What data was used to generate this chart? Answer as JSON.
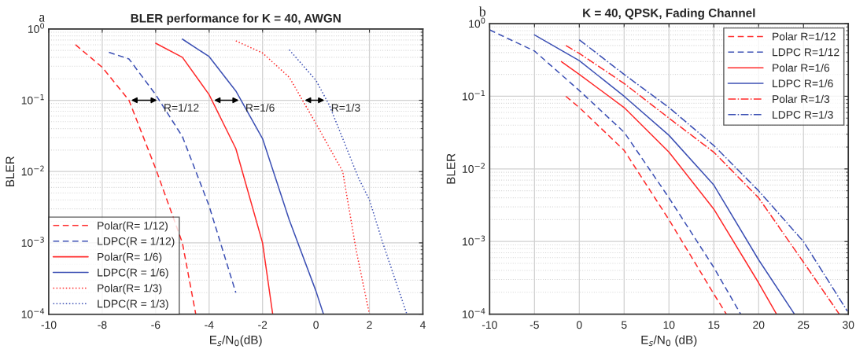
{
  "chart_data": [
    {
      "type": "line",
      "title": "BLER performance for K = 40, AWGN",
      "xlabel": "E$_{s}$/N$_{0}$(dB)",
      "ylabel": "BLER",
      "log": "y",
      "grid": true,
      "legend": "bottom left",
      "xlim": [
        -10,
        4
      ],
      "xticks": [
        -10,
        -8,
        -6,
        -4,
        -2,
        0,
        2,
        4
      ],
      "ylim": [
        0.0001,
        1
      ],
      "yticks": [
        {
          "value": 0.0001,
          "label": "10$^{−4}$"
        },
        {
          "value": 0.001,
          "label": "10$^{−3}$"
        },
        {
          "value": 0.01,
          "label": "10$^{−2}$"
        },
        {
          "value": 0.1,
          "label": "10$^{−1}$"
        },
        {
          "value": 1,
          "label": "10$^{0}$"
        }
      ],
      "annotations": [
        "a",
        {
          "text": "R=1/12",
          "x": -7,
          "y": 0.1
        },
        {
          "text": "R=1/6",
          "x": -3.896,
          "y": 0.1
        },
        {
          "text": "R=1/3",
          "x": -0.505,
          "y": 0.1
        }
      ],
      "series": [
        {
          "name": "Polar(R= 1/12)",
          "color": "#ff2a2a",
          "line_style": "dashed",
          "x": [
            -9,
            -8,
            -7,
            -6,
            -5,
            -4.5
          ],
          "values": [
            0.6,
            0.29,
            0.1,
            0.011,
            0.001,
            0.0001
          ]
        },
        {
          "name": "LDPC(R = 1/12)",
          "color": "#3c50b4",
          "line_style": "dashed",
          "x": [
            -7.75,
            -7,
            -6,
            -5,
            -4,
            -3
          ],
          "values": [
            0.47,
            0.38,
            0.12,
            0.031,
            0.0033,
            0.0002
          ]
        },
        {
          "name": "Polar(R= 1/6)",
          "color": "#ff2a2a",
          "line_style": "solid",
          "x": [
            -6,
            -5,
            -4,
            -3,
            -2,
            -1.62
          ],
          "values": [
            0.63,
            0.4,
            0.12,
            0.021,
            0.001,
            0.0001
          ]
        },
        {
          "name": "LDPC(R = 1/6)",
          "color": "#3c50b4",
          "line_style": "solid",
          "x": [
            -5,
            -4,
            -3,
            -2,
            -1,
            0,
            0.28
          ],
          "values": [
            0.72,
            0.41,
            0.135,
            0.029,
            0.0021,
            0.00021,
            0.0001
          ]
        },
        {
          "name": "Polar(R= 1/3)",
          "color": "#ff2a2a",
          "line_style": "dotted",
          "x": [
            -3,
            -2,
            -1,
            0,
            1,
            1.5,
            2
          ],
          "values": [
            0.68,
            0.46,
            0.21,
            0.047,
            0.01,
            0.0008,
            0.0001
          ]
        },
        {
          "name": "LDPC(R = 1/3)",
          "color": "#3c50b4",
          "line_style": "dotted",
          "x": [
            -1,
            0,
            0.5,
            1.6,
            2,
            2.5,
            3.4
          ],
          "values": [
            0.51,
            0.19,
            0.085,
            0.008,
            0.004,
            0.001,
            0.0001
          ]
        }
      ]
    },
    {
      "type": "line",
      "title": "K = 40, QPSK, Fading Channel",
      "xlabel": "E$_{s}$/N$_{0}$ (dB)",
      "ylabel": "BLER",
      "log": "y",
      "grid": true,
      "legend": "top right",
      "xlim": [
        -10,
        30
      ],
      "xticks": [
        -10,
        -5,
        0,
        5,
        10,
        15,
        20,
        25,
        30
      ],
      "ylim": [
        0.0001,
        1
      ],
      "yticks": [
        {
          "value": 0.0001,
          "label": "10$^{−4}$"
        },
        {
          "value": 0.001,
          "label": "10$^{−3}$"
        },
        {
          "value": 0.01,
          "label": "10$^{−2}$"
        },
        {
          "value": 0.1,
          "label": "10$^{−1}$"
        },
        {
          "value": 1,
          "label": "10$^{0}$"
        }
      ],
      "annotations": [
        "b"
      ],
      "series": [
        {
          "name": "Polar R=1/12",
          "color": "#ff2a2a",
          "line_style": "dashed",
          "x": [
            -1.5,
            0,
            5,
            10,
            15,
            16.4
          ],
          "values": [
            0.1,
            0.07,
            0.018,
            0.002,
            0.00019,
            0.0001
          ]
        },
        {
          "name": "LDPC R=1/12",
          "color": "#3c50b4",
          "line_style": "dashed",
          "x": [
            -10,
            -5,
            0,
            5,
            10,
            15,
            18
          ],
          "values": [
            0.82,
            0.42,
            0.12,
            0.032,
            0.004,
            0.00044,
            0.0001
          ]
        },
        {
          "name": "Polar R=1/6",
          "color": "#ff2a2a",
          "line_style": "solid",
          "x": [
            -2,
            0,
            5,
            10,
            15,
            20,
            22
          ],
          "values": [
            0.3,
            0.2,
            0.07,
            0.017,
            0.0028,
            0.00027,
            0.0001
          ]
        },
        {
          "name": "LDPC R=1/6",
          "color": "#3c50b4",
          "line_style": "solid",
          "x": [
            -5,
            0,
            5,
            10,
            15,
            20,
            24
          ],
          "values": [
            0.7,
            0.31,
            0.1,
            0.029,
            0.006,
            0.00056,
            0.0001
          ]
        },
        {
          "name": "Polar R=1/3",
          "color": "#ff2a2a",
          "line_style": "dashdot",
          "x": [
            -1.5,
            0,
            5,
            10,
            15,
            20,
            25,
            29
          ],
          "values": [
            0.5,
            0.39,
            0.15,
            0.05,
            0.017,
            0.004,
            0.00052,
            0.0001
          ]
        },
        {
          "name": "LDPC R=1/3",
          "color": "#3c50b4",
          "line_style": "dashdot",
          "x": [
            0,
            5,
            10,
            15,
            20,
            25,
            29.9
          ],
          "values": [
            0.6,
            0.2,
            0.07,
            0.021,
            0.005,
            0.001,
            0.00011
          ]
        }
      ]
    }
  ]
}
